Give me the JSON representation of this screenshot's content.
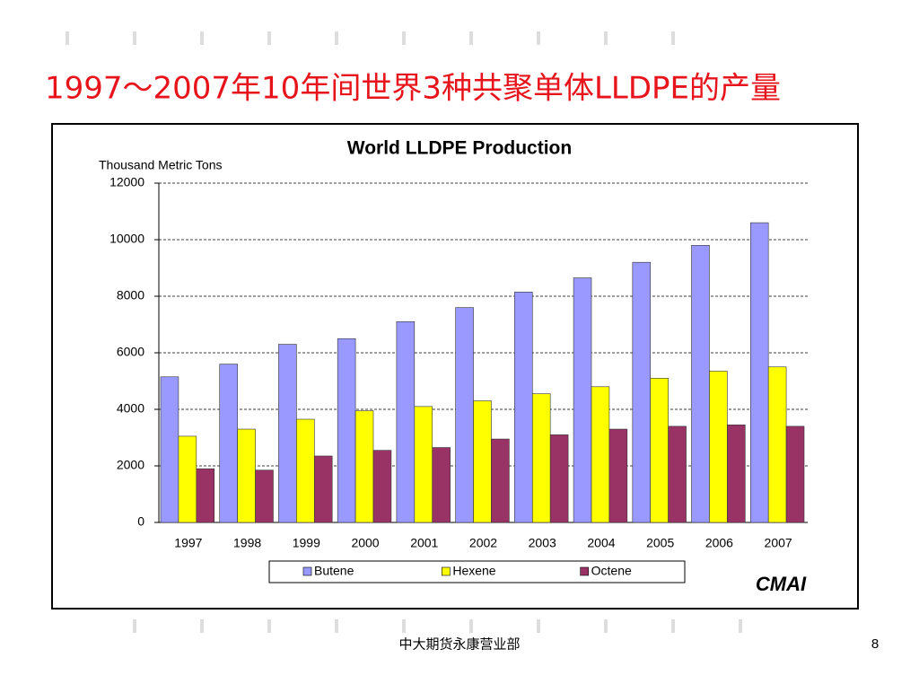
{
  "slide_title": "1997～2007年10年间世界3种共聚单体LLDPE的产量",
  "footer": "中大期货永康营业部",
  "page_number": "8",
  "chart_data": {
    "type": "bar",
    "title": "World LLDPE Production",
    "y_label": "Thousand Metric Tons",
    "logo": "CMAI",
    "categories": [
      "1997",
      "1998",
      "1999",
      "2000",
      "2001",
      "2002",
      "2003",
      "2004",
      "2005",
      "2006",
      "2007"
    ],
    "series": [
      {
        "name": "Butene",
        "color": "#9999ff",
        "values": [
          5150,
          5600,
          6300,
          6500,
          7100,
          7600,
          8150,
          8650,
          9200,
          9800,
          10600
        ]
      },
      {
        "name": "Hexene",
        "color": "#ffff00",
        "values": [
          3050,
          3300,
          3650,
          3950,
          4100,
          4300,
          4550,
          4800,
          5100,
          5350,
          5500
        ]
      },
      {
        "name": "Octene",
        "color": "#993366",
        "values": [
          1900,
          1850,
          2350,
          2550,
          2650,
          2950,
          3100,
          3300,
          3400,
          3450,
          3400
        ]
      }
    ],
    "ylim": [
      0,
      12000
    ],
    "yticks": [
      0,
      2000,
      4000,
      6000,
      8000,
      10000,
      12000
    ],
    "grid": true,
    "legend": "bottom"
  }
}
